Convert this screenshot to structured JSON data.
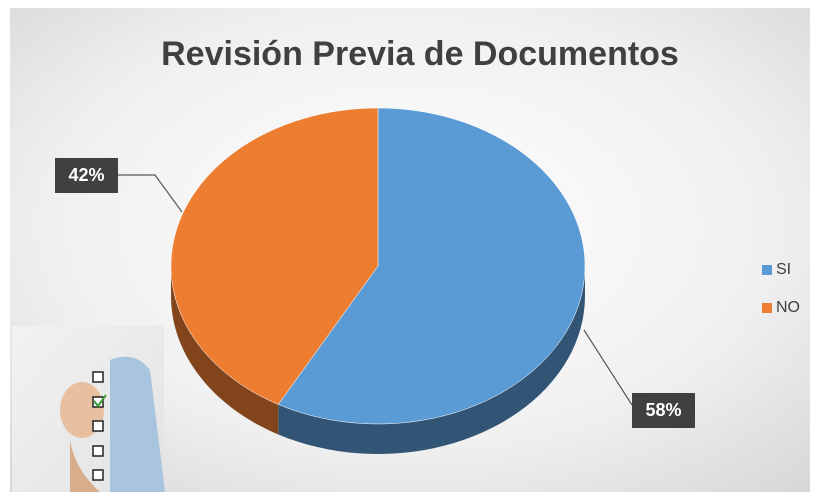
{
  "chart_data": {
    "type": "pie",
    "title": "Revisión Previa de Documentos",
    "categories": [
      "SI",
      "NO"
    ],
    "values": [
      58,
      42
    ],
    "value_labels": [
      "58%",
      "42%"
    ],
    "colors": [
      "#5b9bd5",
      "#ed7d31"
    ],
    "legend": "right"
  }
}
